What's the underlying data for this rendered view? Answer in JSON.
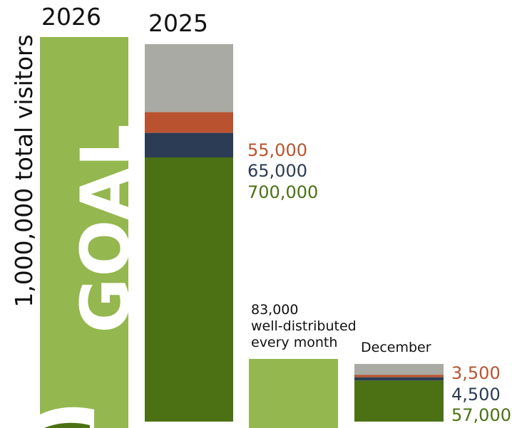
{
  "chart_data": {
    "type": "bar",
    "ylabel": "1,000,000 total visitors",
    "categories": [
      "2026",
      "2025",
      "",
      "December"
    ],
    "goal": {
      "year": "2026",
      "label": "GOAL",
      "value": 1000000
    },
    "annual_2025": {
      "year": "2025",
      "segments": [
        {
          "value": 700000,
          "label": "700,000",
          "color": "#4b7114"
        },
        {
          "value": 65000,
          "label": "65,000",
          "color": "#2b3c54"
        },
        {
          "value": 55000,
          "label": "55,000",
          "color": "#b9532f"
        },
        {
          "value": 180000,
          "label": "",
          "color": "#a8aaa3"
        }
      ]
    },
    "monthly_average": {
      "value": 83000,
      "label_lines": [
        "83,000",
        "well-distributed",
        "every month"
      ],
      "color": "#94b74f"
    },
    "december": {
      "label": "December",
      "segments": [
        {
          "value": 57000,
          "label": "57,000",
          "color": "#4b7114"
        },
        {
          "value": 4500,
          "label": "4,500",
          "color": "#2b3c54"
        },
        {
          "value": 3500,
          "label": "3,500",
          "color": "#b9532f"
        },
        {
          "value": 15000,
          "label": "",
          "color": "#a8aaa3"
        }
      ]
    },
    "colors": {
      "goal": "#94b74f",
      "text": "#111111"
    }
  }
}
